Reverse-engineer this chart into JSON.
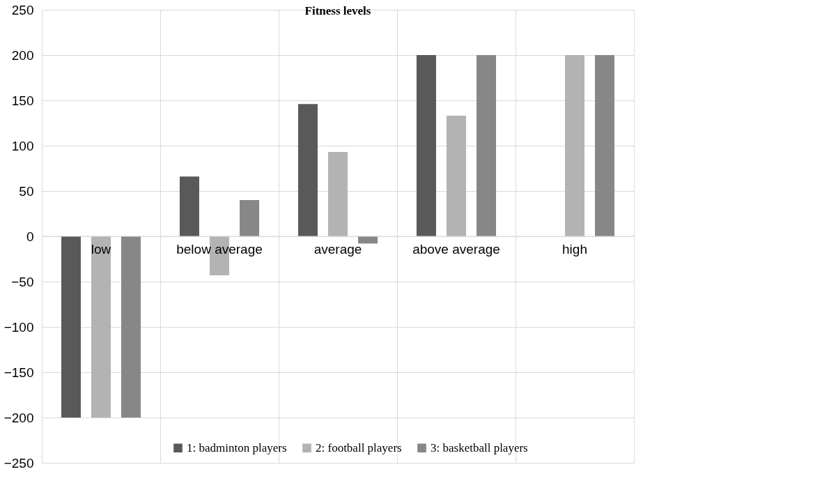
{
  "chart_data": {
    "type": "bar",
    "title": "Fitness levels",
    "categories": [
      "low",
      "below average",
      "average",
      "above average",
      "high"
    ],
    "series": [
      {
        "name": "1: badminton players",
        "color": "#595959",
        "values": [
          -200,
          66,
          146,
          200,
          0
        ]
      },
      {
        "name": "2: football players",
        "color": "#b3b3b3",
        "values": [
          -200,
          -43,
          93,
          133,
          200
        ]
      },
      {
        "name": "3: basketball players",
        "color": "#878787",
        "values": [
          -200,
          40,
          -8,
          200,
          200
        ]
      }
    ],
    "ylim": [
      -250,
      250
    ],
    "yticks": [
      -250,
      -200,
      -150,
      -100,
      -50,
      0,
      50,
      100,
      150,
      200,
      250
    ],
    "grid": true,
    "legend": "bottom"
  }
}
